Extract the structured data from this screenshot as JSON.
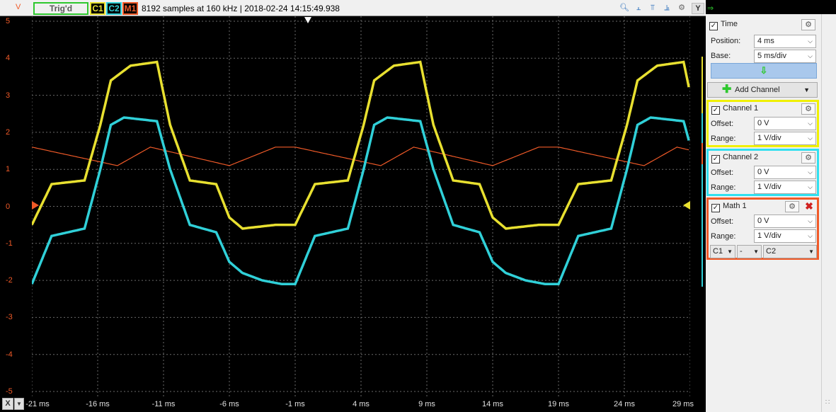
{
  "topbar": {
    "volt_unit": "V",
    "trig_label": "Trig'd",
    "c1_label": "C1",
    "c2_label": "C2",
    "m1_label": "M1",
    "info": "8192 samples at 160 kHz | 2018-02-24 14:15:49.938",
    "y_button": "Y"
  },
  "axes": {
    "y_ticks": [
      "5",
      "4",
      "3",
      "2",
      "1",
      "0",
      "-1",
      "-2",
      "-3",
      "-4",
      "-5"
    ],
    "x_ticks": [
      "-21 ms",
      "-16 ms",
      "-11 ms",
      "-6 ms",
      "-1 ms",
      "4 ms",
      "9 ms",
      "14 ms",
      "19 ms",
      "24 ms",
      "29 ms"
    ],
    "x_button": "X"
  },
  "colors": {
    "c1": "#e8e030",
    "c2": "#30d0d8",
    "m1": "#f05a28",
    "grid": "#6a6a6a"
  },
  "panel": {
    "time": {
      "title": "Time",
      "position_label": "Position:",
      "position_value": "4 ms",
      "base_label": "Base:",
      "base_value": "5 ms/div"
    },
    "add_channel": "Add Channel",
    "channel1": {
      "title": "Channel 1",
      "offset_label": "Offset:",
      "offset_value": "0 V",
      "range_label": "Range:",
      "range_value": "1 V/div"
    },
    "channel2": {
      "title": "Channel 2",
      "offset_label": "Offset:",
      "offset_value": "0 V",
      "range_label": "Range:",
      "range_value": "1 V/div"
    },
    "math1": {
      "title": "Math 1",
      "offset_label": "Offset:",
      "offset_value": "0 V",
      "range_label": "Range:",
      "range_value": "1 V/div",
      "operand_a": "C1",
      "operator": "-",
      "operand_b": "C2"
    }
  }
}
